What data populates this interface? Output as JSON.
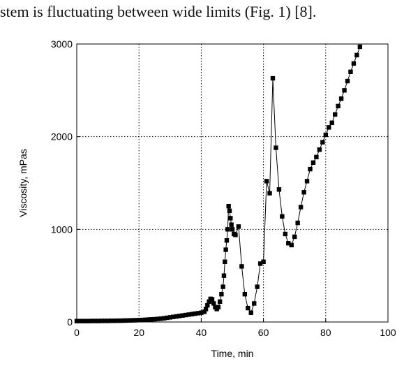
{
  "header_text": "stem is fluctuating between wide limits (Fig. 1) [8].",
  "chart_data": {
    "type": "line",
    "title": "",
    "xlabel": "Time, min",
    "ylabel": "Viscosity, mPas",
    "xlim": [
      0,
      100
    ],
    "ylim": [
      0,
      3000
    ],
    "x_ticks": [
      "0",
      "20",
      "40",
      "60",
      "80",
      "100"
    ],
    "y_ticks": [
      "0",
      "1000",
      "2000",
      "3000"
    ],
    "grid": "dotted",
    "marker": "square",
    "series": [
      {
        "name": "",
        "color": "#000000",
        "x": [
          0,
          1,
          2,
          3,
          4,
          5,
          6,
          7,
          8,
          9,
          10,
          11,
          12,
          13,
          14,
          15,
          16,
          17,
          18,
          19,
          20,
          21,
          22,
          23,
          24,
          25,
          26,
          27,
          28,
          29,
          30,
          31,
          32,
          33,
          34,
          35,
          36,
          37,
          38,
          39,
          40,
          41,
          41.5,
          42,
          42.5,
          43,
          43.5,
          44,
          44.5,
          45,
          45.5,
          46,
          46.5,
          47,
          47.3,
          47.6,
          47.9,
          48.2,
          48.5,
          48.8,
          49.1,
          49.4,
          49.7,
          50,
          50.5,
          51,
          52,
          53,
          54,
          55,
          56,
          57,
          58,
          59,
          60,
          61,
          62,
          63,
          64,
          65,
          66,
          67,
          68,
          69,
          70,
          71,
          72,
          73,
          74,
          75,
          76,
          77,
          78,
          79,
          80,
          81,
          82,
          83,
          84,
          85,
          86,
          87,
          88,
          89,
          90,
          91
        ],
        "y": [
          10,
          10,
          10,
          10,
          10,
          11,
          11,
          11,
          12,
          12,
          12,
          13,
          13,
          14,
          14,
          15,
          16,
          17,
          18,
          19,
          20,
          22,
          24,
          26,
          28,
          30,
          33,
          36,
          40,
          45,
          50,
          55,
          60,
          65,
          70,
          75,
          80,
          85,
          90,
          95,
          100,
          110,
          140,
          180,
          220,
          250,
          245,
          200,
          160,
          140,
          160,
          220,
          300,
          380,
          500,
          650,
          780,
          880,
          1000,
          1250,
          1200,
          1120,
          1050,
          1000,
          950,
          940,
          1030,
          600,
          300,
          150,
          100,
          200,
          380,
          630,
          650,
          1520,
          1390,
          2630,
          1880,
          1430,
          1140,
          950,
          850,
          830,
          920,
          1070,
          1240,
          1400,
          1520,
          1650,
          1720,
          1780,
          1860,
          1940,
          2020,
          2100,
          2150,
          2240,
          2330,
          2410,
          2500,
          2600,
          2700,
          2790,
          2880,
          2970
        ]
      }
    ]
  }
}
